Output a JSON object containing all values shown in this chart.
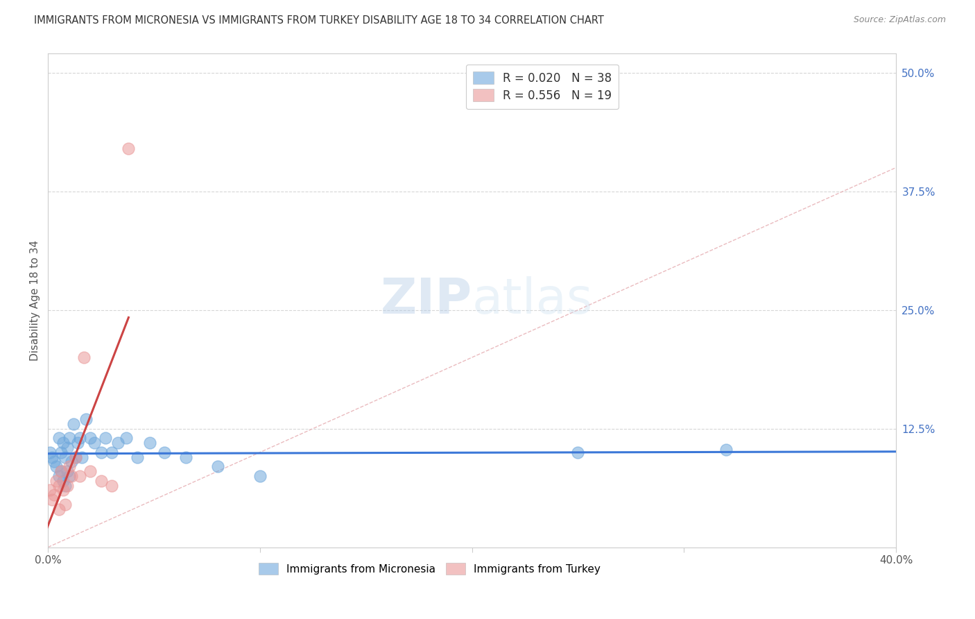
{
  "title": "IMMIGRANTS FROM MICRONESIA VS IMMIGRANTS FROM TURKEY DISABILITY AGE 18 TO 34 CORRELATION CHART",
  "source": "Source: ZipAtlas.com",
  "ylabel": "Disability Age 18 to 34",
  "xlim": [
    0.0,
    0.4
  ],
  "ylim": [
    0.0,
    0.52
  ],
  "xticks": [
    0.0,
    0.1,
    0.2,
    0.3,
    0.4
  ],
  "xtick_labels": [
    "0.0%",
    "",
    "",
    "",
    "40.0%"
  ],
  "yticks_right": [
    0.5,
    0.375,
    0.25,
    0.125
  ],
  "ytick_labels_right": [
    "50.0%",
    "37.5%",
    "25.0%",
    "12.5%"
  ],
  "R_micronesia": 0.02,
  "N_micronesia": 38,
  "R_turkey": 0.556,
  "N_turkey": 19,
  "color_micronesia": "#6fa8dc",
  "color_turkey": "#ea9999",
  "trend_color_micronesia": "#3c78d8",
  "trend_color_turkey": "#cc4444",
  "diagonal_color": "#e8b4b8",
  "right_tick_color": "#4472c4",
  "background_color": "#ffffff",
  "grid_color": "#cccccc",
  "micronesia_x": [
    0.001,
    0.002,
    0.003,
    0.004,
    0.005,
    0.005,
    0.006,
    0.006,
    0.007,
    0.007,
    0.008,
    0.008,
    0.009,
    0.009,
    0.01,
    0.01,
    0.011,
    0.012,
    0.013,
    0.014,
    0.015,
    0.016,
    0.018,
    0.02,
    0.022,
    0.025,
    0.027,
    0.03,
    0.033,
    0.037,
    0.042,
    0.048,
    0.055,
    0.065,
    0.08,
    0.1,
    0.25,
    0.32
  ],
  "micronesia_y": [
    0.1,
    0.095,
    0.09,
    0.085,
    0.115,
    0.075,
    0.1,
    0.08,
    0.11,
    0.07,
    0.095,
    0.065,
    0.105,
    0.08,
    0.115,
    0.075,
    0.09,
    0.13,
    0.095,
    0.11,
    0.115,
    0.095,
    0.135,
    0.115,
    0.11,
    0.1,
    0.115,
    0.1,
    0.11,
    0.115,
    0.095,
    0.11,
    0.1,
    0.095,
    0.085,
    0.075,
    0.1,
    0.103
  ],
  "turkey_x": [
    0.001,
    0.002,
    0.003,
    0.004,
    0.005,
    0.005,
    0.006,
    0.007,
    0.008,
    0.009,
    0.01,
    0.011,
    0.013,
    0.015,
    0.017,
    0.02,
    0.025,
    0.03,
    0.038
  ],
  "turkey_y": [
    0.06,
    0.05,
    0.055,
    0.07,
    0.065,
    0.04,
    0.08,
    0.06,
    0.045,
    0.065,
    0.085,
    0.075,
    0.095,
    0.075,
    0.2,
    0.08,
    0.07,
    0.065,
    0.42
  ]
}
